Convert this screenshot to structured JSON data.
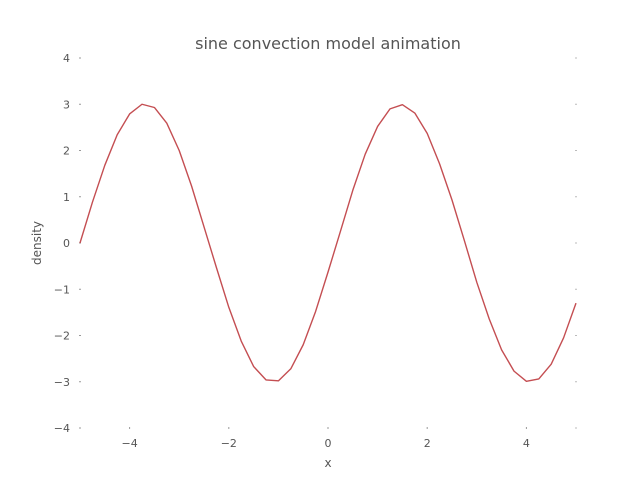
{
  "chart_data": {
    "type": "line",
    "title": "sine convection model animation",
    "xlabel": "x",
    "ylabel": "density",
    "xlim": [
      -5,
      5
    ],
    "ylim": [
      -4,
      4
    ],
    "x_ticks": [
      -4,
      -2,
      0,
      2,
      4
    ],
    "x_tick_labels": [
      "−4",
      "−2",
      "0",
      "2",
      "4"
    ],
    "y_ticks": [
      -4,
      -3,
      -2,
      -1,
      0,
      1,
      2,
      3,
      4
    ],
    "y_tick_labels": [
      "−4",
      "−3",
      "−2",
      "−1",
      "0",
      "1",
      "2",
      "3",
      "4"
    ],
    "grid": false,
    "series": [
      {
        "color": "#c44e52",
        "x": [
          -5,
          -4.75,
          -4.5,
          -4.25,
          -4,
          -3.75,
          -3.5,
          -3.25,
          -3,
          -2.75,
          -2.5,
          -2.25,
          -2,
          -1.75,
          -1.5,
          -1.25,
          -1,
          -0.75,
          -0.5,
          -0.25,
          0,
          0.25,
          0.5,
          0.75,
          1,
          1.25,
          1.5,
          1.75,
          2,
          2.25,
          2.5,
          2.75,
          3,
          3.25,
          3.5,
          3.75,
          4,
          4.25,
          4.5,
          4.75,
          5
        ],
        "y": [
          0,
          0.88,
          1.68,
          2.34,
          2.79,
          3.0,
          2.93,
          2.59,
          2.0,
          1.23,
          0.35,
          -0.53,
          -1.39,
          -2.12,
          -2.67,
          -2.96,
          -2.98,
          -2.72,
          -2.2,
          -1.48,
          -0.63,
          0.25,
          1.14,
          1.92,
          2.52,
          2.9,
          2.99,
          2.81,
          2.37,
          1.71,
          0.93,
          0.05,
          -0.85,
          -1.64,
          -2.31,
          -2.77,
          -2.99,
          -2.94,
          -2.62,
          -2.05,
          -1.3
        ]
      }
    ]
  }
}
